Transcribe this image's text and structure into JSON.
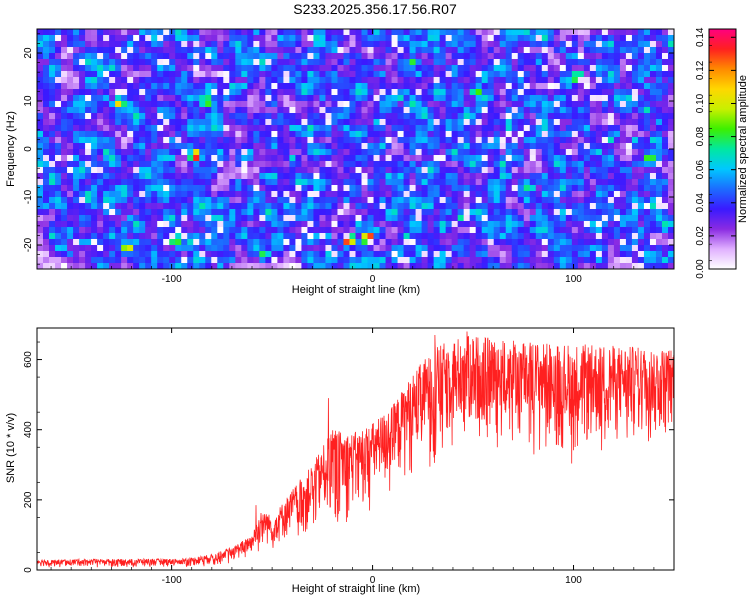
{
  "title": "S233.2025.356.17.56.R07",
  "chart_data": [
    {
      "type": "heatmap",
      "xlabel": "Height of straight line (km)",
      "ylabel": "Frequency (Hz)",
      "xlim": [
        -167,
        150
      ],
      "ylim": [
        -25,
        25
      ],
      "xticks": [
        -100,
        0,
        100
      ],
      "yticks": [
        -20,
        -10,
        0,
        10,
        20
      ],
      "colorbar": {
        "label": "Normalized spectral amplitude",
        "range": [
          0,
          0.145
        ],
        "ticks": [
          "0.00",
          "0.02",
          "0.04",
          "0.06",
          "0.08",
          "0.10",
          "0.12",
          "0.14"
        ],
        "colors": [
          "#ffffff",
          "#e0b0ff",
          "#8a2be2",
          "#3a1aff",
          "#1c6cff",
          "#00c8ff",
          "#00e8a0",
          "#3cf000",
          "#c8f000",
          "#ffd700",
          "#ff8a00",
          "#ff2020",
          "#ff0080"
        ]
      },
      "description_values": {
        "background_level": 0.015,
        "typical_peak": 0.045,
        "max_peak": 0.14
      },
      "hot_spots": [
        {
          "x": -2,
          "y": -18.5,
          "v": 0.135
        },
        {
          "x": -12,
          "y": -19,
          "v": 0.13
        },
        {
          "x": -88,
          "y": -1.5,
          "v": 0.125
        },
        {
          "x": -122,
          "y": -20.5,
          "v": 0.1
        },
        {
          "x": -126,
          "y": 9.5,
          "v": 0.1
        },
        {
          "x": -83,
          "y": 10,
          "v": 0.09
        },
        {
          "x": 138,
          "y": -2,
          "v": 0.09
        },
        {
          "x": 102,
          "y": 15,
          "v": 0.085
        },
        {
          "x": 52,
          "y": 12,
          "v": 0.08
        },
        {
          "x": -98,
          "y": -19,
          "v": 0.08
        },
        {
          "x": -54,
          "y": -22,
          "v": 0.075
        },
        {
          "x": 20,
          "y": 18,
          "v": 0.075
        },
        {
          "x": -140,
          "y": 14,
          "v": 0.07
        },
        {
          "x": 78,
          "y": -8,
          "v": 0.07
        },
        {
          "x": -30,
          "y": 4,
          "v": 0.065
        },
        {
          "x": 45,
          "y": -14,
          "v": 0.065
        },
        {
          "x": 118,
          "y": 2,
          "v": 0.06
        },
        {
          "x": -64,
          "y": 16,
          "v": 0.06
        },
        {
          "x": 8,
          "y": -6,
          "v": 0.06
        },
        {
          "x": -110,
          "y": -8,
          "v": 0.055
        },
        {
          "x": 145,
          "y": -16,
          "v": 0.06
        }
      ]
    },
    {
      "type": "line",
      "xlabel": "Height of straight line (km)",
      "ylabel": "SNR (10 * v/v)",
      "xlim": [
        -167,
        150
      ],
      "ylim": [
        0,
        690
      ],
      "xticks": [
        -100,
        0,
        100
      ],
      "yticks": [
        0,
        200,
        400,
        600
      ],
      "color": "#ff2020",
      "envelope": {
        "x": [
          -167,
          -100,
          -90,
          -80,
          -70,
          -60,
          -55,
          -50,
          -40,
          -30,
          -20,
          -10,
          0,
          10,
          20,
          30,
          40,
          50,
          60,
          80,
          100,
          120,
          150
        ],
        "upper": [
          30,
          32,
          35,
          45,
          65,
          100,
          180,
          150,
          230,
          300,
          400,
          390,
          420,
          470,
          560,
          630,
          660,
          670,
          660,
          650,
          645,
          640,
          630
        ],
        "lower": [
          8,
          8,
          8,
          12,
          20,
          40,
          55,
          60,
          70,
          90,
          120,
          140,
          160,
          200,
          260,
          300,
          340,
          360,
          350,
          330,
          300,
          320,
          380
        ]
      },
      "notable_spikes": [
        {
          "x": -22,
          "y": 490
        },
        {
          "x": 47,
          "y": 680
        },
        {
          "x": 31,
          "y": 670
        },
        {
          "x": -58,
          "y": 185
        }
      ]
    }
  ]
}
